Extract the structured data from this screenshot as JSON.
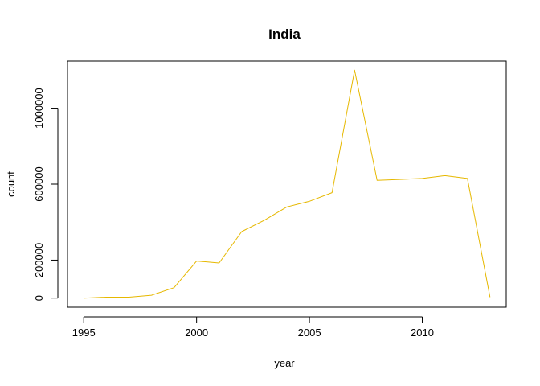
{
  "chart_data": {
    "type": "line",
    "title": "India",
    "xlabel": "year",
    "ylabel": "count",
    "x_ticks": [
      1995,
      2000,
      2005,
      2010
    ],
    "x_tick_labels": [
      "1995",
      "2000",
      "2005",
      "2010"
    ],
    "y_ticks": [
      0,
      200000,
      600000,
      1000000
    ],
    "y_tick_labels": [
      "0",
      "200000",
      "600000",
      "1000000"
    ],
    "xlim": [
      1994.28,
      2013.72
    ],
    "ylim": [
      -48000,
      1248000
    ],
    "grid": false,
    "legend": "none",
    "series": [
      {
        "color": "#E6B800",
        "x": [
          1995,
          1996,
          1997,
          1998,
          1999,
          2000,
          2001,
          2002,
          2003,
          2004,
          2005,
          2006,
          2007,
          2008,
          2009,
          2010,
          2011,
          2012,
          2013
        ],
        "y": [
          0,
          5000,
          5000,
          15000,
          55000,
          195000,
          185000,
          350000,
          410000,
          480000,
          510000,
          555000,
          1200000,
          620000,
          625000,
          630000,
          645000,
          630000,
          5000
        ]
      }
    ]
  }
}
